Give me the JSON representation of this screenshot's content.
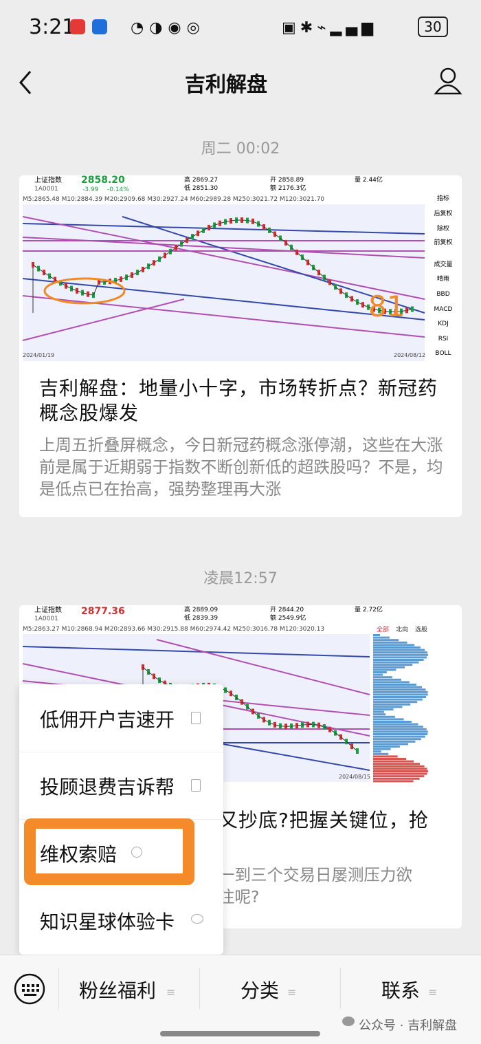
{
  "status_bar": {
    "time": "3:21",
    "battery": "30"
  },
  "nav": {
    "title": "吉利解盘"
  },
  "messages": [
    {
      "time": "周二 00:02",
      "image": {
        "index_name": "上证指数",
        "code": "1A0001",
        "price": "2858.20",
        "change": "-3.99",
        "change_pct": "-0.14%",
        "high": "高 2869.27",
        "low": "低 2851.30",
        "open": "开 2858.89",
        "amount": "额 2176.3亿",
        "volume": "量 2.44亿",
        "ma_line": "M5:2865.48 M10:2884.39 M20:2909.68 M30:2927.24 M60:2989.28 M250:3021.72 M120:3021.70",
        "side_menu": [
          "指标",
          "后复权",
          "除权",
          "前复权",
          "成交量",
          "晴雨",
          "BBD",
          "MACD",
          "KDJ",
          "RSI",
          "BOLL"
        ],
        "annotation": "81",
        "start_date": "2024/01/19",
        "end_date": "2024/08/12"
      },
      "title": "吉利解盘：地量小十字，市场转折点？新冠药概念股爆发",
      "summary": "上周五折叠屏概念，今日新冠药概念涨停潮，这些在大涨前是属于近期弱于指数不断创新低的超跌股吗？不是，均是低点已在抬高，强势整理再大涨"
    },
    {
      "time": "凌晨12:57",
      "image": {
        "index_name": "上证指数",
        "code": "1A0001",
        "price": "2877.36",
        "high": "高 2889.09",
        "low": "低 2839.39",
        "open": "开 2844.20",
        "amount": "额 2549.9亿",
        "volume": "量 2.72亿",
        "ma_line": "M5:2863.27 M10:2868.94 M20:2893.66 M30:2915.88 M60:2974.42 M250:3016.78 M120:3020.13",
        "tabs": [
          "全部",
          "北向",
          "选股"
        ],
        "end_date": "2024/08/15"
      },
      "title_visible": "又抄底?把握关键位，抢",
      "summary_lines": [
        "一到三个交易日屡测压力欲",
        "注呢?"
      ]
    }
  ],
  "menu": {
    "items": [
      "低佣开户吉速开",
      "投顾退费吉诉帮",
      "维权索赔",
      "知识星球体验卡"
    ]
  },
  "bottom_bar": {
    "tabs": [
      "粉丝福利",
      "分类",
      "联系"
    ]
  },
  "watermark": "公众号 · 吉利解盘"
}
